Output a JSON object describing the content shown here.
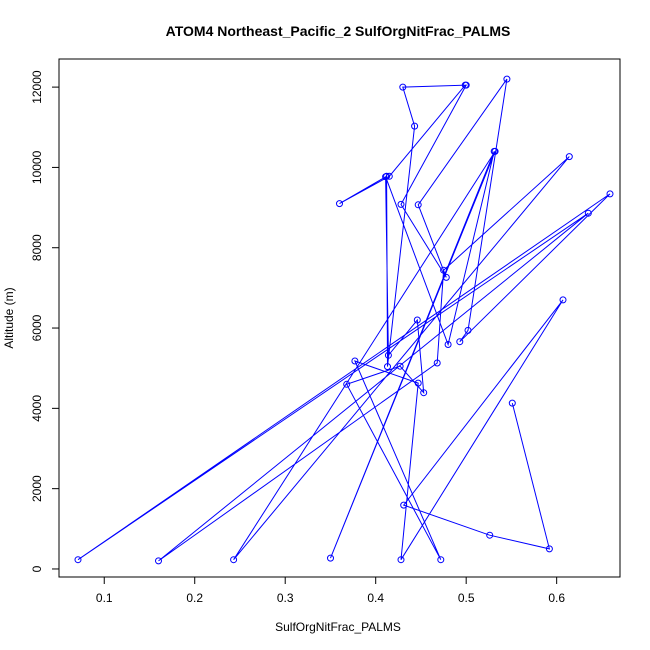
{
  "chart_data": {
    "type": "line",
    "title": "ATOM4 Northeast_Pacific_2 SulfOrgNitFrac_PALMS",
    "xlabel": "SulfOrgNitFrac_PALMS",
    "ylabel": "Altitude (m)",
    "xlim": [
      0.05,
      0.67
    ],
    "ylim": [
      -200,
      12700
    ],
    "xticks": [
      "0.1",
      "0.2",
      "0.3",
      "0.4",
      "0.5",
      "0.6"
    ],
    "yticks": [
      "0",
      "2000",
      "4000",
      "6000",
      "8000",
      "10000",
      "12000"
    ],
    "grid": false,
    "legend": "none",
    "color": "#0000ff",
    "marker": "open-circle",
    "series": [
      {
        "x": [
          0.551,
          0.592,
          0.526,
          0.431,
          0.607,
          0.428,
          0.447,
          0.377,
          0.472,
          0.368,
          0.427,
          0.453,
          0.446,
          0.414,
          0.411,
          0.48,
          0.531,
          0.35,
          0.532,
          0.243,
          0.614,
          0.475,
          0.468,
          0.16,
          0.635,
          0.071,
          0.659,
          0.493,
          0.502,
          0.545,
          0.447,
          0.478,
          0.428,
          0.5,
          0.43,
          0.443,
          0.413,
          0.412,
          0.36,
          0.415,
          0.499
        ],
        "y": [
          4130,
          500,
          840,
          1590,
          6700,
          230,
          4630,
          5180,
          230,
          4600,
          5050,
          4390,
          6200,
          5320,
          9770,
          5590,
          10400,
          270,
          10400,
          230,
          10270,
          7440,
          5130,
          200,
          8860,
          230,
          9340,
          5660,
          5940,
          12200,
          9070,
          7260,
          9080,
          12050,
          12000,
          11030,
          5040,
          9780,
          9100,
          9780,
          12050
        ]
      }
    ]
  }
}
